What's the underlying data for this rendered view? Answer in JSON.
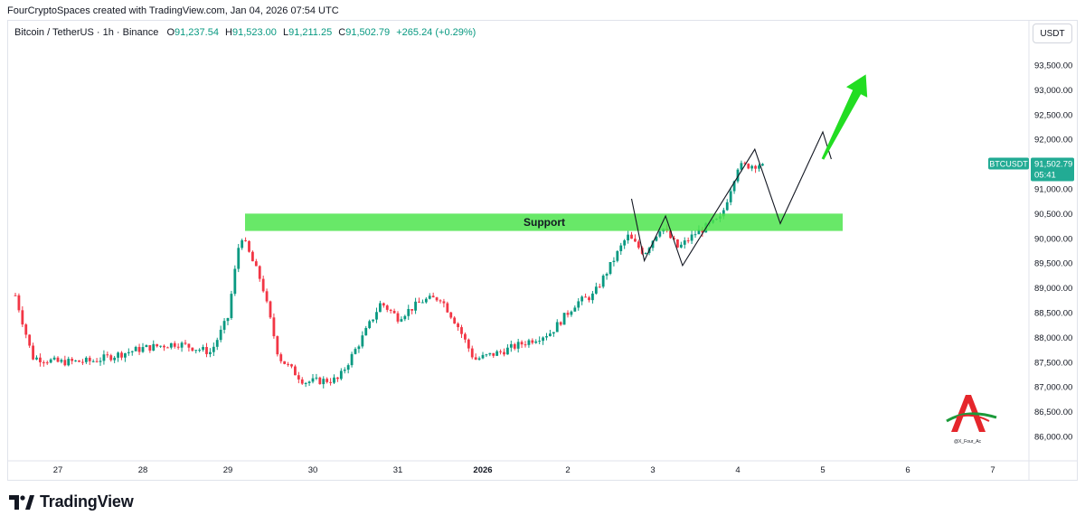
{
  "header": {
    "attribution": "FourCryptoSpaces created with TradingView.com, Jan 04, 2026 07:54 UTC"
  },
  "legend": {
    "symbol": "Bitcoin / TetherUS · 1h · Binance",
    "o_label": "O",
    "o_value": "91,237.54",
    "h_label": "H",
    "h_value": "91,523.00",
    "l_label": "L",
    "l_value": "91,211.25",
    "c_label": "C",
    "c_value": "91,502.79",
    "change": "+265.24 (+0.29%)"
  },
  "currency_button": "USDT",
  "price_tag": {
    "symbol": "BTCUSDT",
    "price": "91,502.79",
    "countdown": "05:41"
  },
  "branding": {
    "logo_text": "TradingView",
    "watermark_text": "@X_Four_Ac"
  },
  "colors": {
    "up": "#089981",
    "down": "#f23645",
    "tag": "#22ab94",
    "support_zone": "#4ee44e",
    "arrow": "#22dd22"
  },
  "chart_data": {
    "type": "candlestick",
    "symbol": "BTCUSDT",
    "timeframe": "1h",
    "y_ticks": [
      "86,000.00",
      "86,500.00",
      "87,000.00",
      "87,500.00",
      "88,000.00",
      "88,500.00",
      "89,000.00",
      "89,500.00",
      "90,000.00",
      "90,500.00",
      "91,000.00",
      "91,500.00",
      "92,000.00",
      "92,500.00",
      "93,000.00",
      "93,500.00"
    ],
    "ylim": [
      85700,
      94200
    ],
    "x_ticks": [
      "27",
      "28",
      "29",
      "30",
      "31",
      "2026",
      "2",
      "3",
      "4",
      "5",
      "6",
      "7"
    ],
    "last_price": 91502.79,
    "support_zone": {
      "label": "Support",
      "from": 90150,
      "to": 90500
    },
    "price_path": [
      [
        26.5,
        88850
      ],
      [
        26.7,
        87600
      ],
      [
        27.0,
        87500
      ],
      [
        27.4,
        87520
      ],
      [
        27.7,
        87650
      ],
      [
        28.0,
        87780
      ],
      [
        28.4,
        87880
      ],
      [
        28.8,
        87700
      ],
      [
        29.0,
        88400
      ],
      [
        29.15,
        90100
      ],
      [
        29.4,
        89100
      ],
      [
        29.6,
        87600
      ],
      [
        29.9,
        87100
      ],
      [
        30.3,
        87150
      ],
      [
        30.6,
        88050
      ],
      [
        30.8,
        88700
      ],
      [
        31.0,
        88400
      ],
      [
        31.3,
        88750
      ],
      [
        31.5,
        88800
      ],
      [
        31.7,
        88250
      ],
      [
        31.9,
        87550
      ],
      [
        32.2,
        87700
      ],
      [
        32.5,
        87900
      ],
      [
        32.8,
        88100
      ],
      [
        33.1,
        88700
      ],
      [
        33.3,
        88850
      ],
      [
        33.5,
        89450
      ],
      [
        33.7,
        90050
      ],
      [
        33.9,
        89700
      ],
      [
        34.1,
        90250
      ],
      [
        34.3,
        89800
      ],
      [
        34.5,
        90100
      ],
      [
        34.8,
        90400
      ],
      [
        35.0,
        91450
      ],
      [
        35.3,
        91502.79
      ]
    ],
    "annotations": [
      {
        "type": "projection_path",
        "points": [
          [
            33.75,
            90800
          ],
          [
            33.9,
            89550
          ],
          [
            34.15,
            90450
          ],
          [
            34.35,
            89450
          ],
          [
            35.2,
            91800
          ],
          [
            35.5,
            90300
          ],
          [
            36.0,
            92150
          ],
          [
            36.1,
            91600
          ]
        ]
      },
      {
        "type": "arrow",
        "from": [
          36.0,
          91600
        ],
        "to": [
          36.4,
          93200
        ]
      }
    ]
  }
}
